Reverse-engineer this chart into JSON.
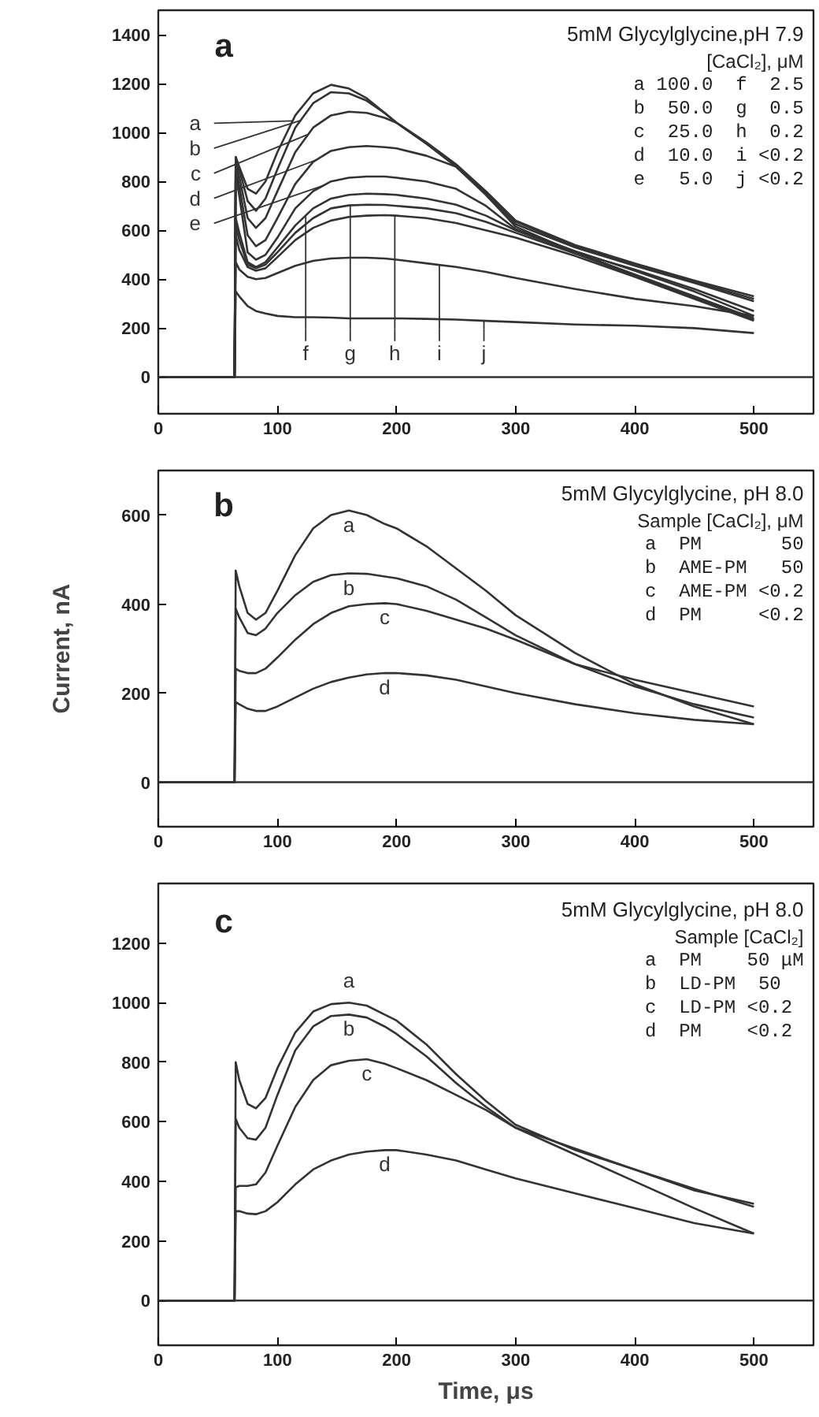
{
  "chart_data": [
    {
      "type": "line",
      "legend": "bottom left",
      "title": "5mM Glycylglycine,pH 7.9",
      "annotations": [
        "a",
        "[CaCl₂], μM",
        "a 100.0  f  2.5",
        "b  50.0  g  0.5",
        "c  25.0  h  0.2",
        "d  10.0  i <0.2",
        "e   5.0  j <0.2"
      ],
      "x": [
        0,
        64,
        65,
        68,
        75,
        82,
        90,
        100,
        115,
        130,
        145,
        160,
        175,
        190,
        200,
        225,
        250,
        275,
        300,
        350,
        400,
        450,
        500
      ],
      "xlim": [
        0,
        550
      ],
      "ylim": [
        -150,
        1500
      ],
      "xticks": [
        0,
        100,
        200,
        300,
        400,
        500
      ],
      "yticks": [
        0,
        200,
        400,
        600,
        800,
        1000,
        1200,
        1400
      ],
      "ref_lines": [
        {
          "axis": "y",
          "value": 0,
          "color": "#333333"
        }
      ],
      "series": [
        {
          "name": "a",
          "color": "#333333",
          "values": [
            0,
            0,
            900,
            860,
            770,
            750,
            800,
            920,
            1070,
            1160,
            1195,
            1180,
            1140,
            1080,
            1040,
            960,
            870,
            760,
            640,
            540,
            465,
            395,
            330
          ]
        },
        {
          "name": "b",
          "color": "#333333",
          "values": [
            0,
            0,
            900,
            850,
            720,
            680,
            730,
            850,
            1020,
            1120,
            1165,
            1160,
            1130,
            1080,
            1040,
            955,
            865,
            755,
            635,
            535,
            460,
            390,
            320
          ]
        },
        {
          "name": "c",
          "color": "#333333",
          "values": [
            0,
            0,
            880,
            820,
            650,
            610,
            650,
            760,
            920,
            1020,
            1070,
            1085,
            1080,
            1060,
            1040,
            955,
            860,
            750,
            625,
            530,
            455,
            385,
            310
          ]
        },
        {
          "name": "d",
          "color": "#333333",
          "values": [
            0,
            0,
            860,
            780,
            580,
            535,
            560,
            650,
            790,
            880,
            925,
            940,
            945,
            940,
            935,
            905,
            860,
            745,
            615,
            510,
            440,
            360,
            270
          ]
        },
        {
          "name": "e",
          "color": "#333333",
          "values": [
            0,
            0,
            840,
            740,
            510,
            480,
            500,
            570,
            690,
            760,
            800,
            815,
            820,
            820,
            815,
            800,
            770,
            700,
            605,
            515,
            435,
            350,
            250
          ]
        },
        {
          "name": "f",
          "color": "#333333",
          "values": [
            0,
            0,
            650,
            590,
            470,
            450,
            470,
            530,
            620,
            690,
            730,
            745,
            750,
            748,
            745,
            730,
            705,
            660,
            600,
            510,
            420,
            330,
            240
          ]
        },
        {
          "name": "g",
          "color": "#333333",
          "values": [
            0,
            0,
            620,
            560,
            460,
            445,
            460,
            510,
            590,
            650,
            690,
            702,
            705,
            704,
            700,
            690,
            670,
            635,
            590,
            505,
            415,
            325,
            235
          ]
        },
        {
          "name": "h",
          "color": "#333333",
          "values": [
            0,
            0,
            580,
            520,
            450,
            435,
            445,
            490,
            560,
            610,
            640,
            655,
            660,
            662,
            660,
            650,
            630,
            600,
            570,
            495,
            410,
            320,
            230
          ]
        },
        {
          "name": "i",
          "color": "#333333",
          "values": [
            0,
            0,
            470,
            440,
            410,
            400,
            405,
            425,
            455,
            475,
            485,
            488,
            488,
            485,
            480,
            465,
            450,
            430,
            405,
            360,
            320,
            290,
            250
          ]
        },
        {
          "name": "j",
          "color": "#333333",
          "values": [
            0,
            0,
            350,
            330,
            290,
            270,
            260,
            250,
            245,
            245,
            243,
            240,
            240,
            240,
            240,
            238,
            235,
            230,
            225,
            215,
            210,
            200,
            180
          ]
        }
      ]
    },
    {
      "type": "line",
      "title": "5mM Glycylglycine, pH 8.0",
      "ylabel": "Current, nA",
      "annotations": [
        "b",
        "Sample [CaCl₂], μM",
        "a  PM       50",
        "b  AME-PM   50",
        "c  AME-PM <0.2",
        "d  PM     <0.2"
      ],
      "x": [
        0,
        64,
        65,
        68,
        75,
        82,
        90,
        100,
        115,
        130,
        145,
        160,
        175,
        190,
        200,
        225,
        250,
        275,
        300,
        350,
        400,
        450,
        500
      ],
      "xlim": [
        0,
        550
      ],
      "ylim": [
        -100,
        700
      ],
      "xticks": [
        0,
        100,
        200,
        300,
        400,
        500
      ],
      "yticks": [
        0,
        200,
        400,
        600
      ],
      "ref_lines": [
        {
          "axis": "y",
          "value": 0,
          "color": "#333333"
        }
      ],
      "series": [
        {
          "name": "a",
          "color": "#333333",
          "values": [
            0,
            0,
            475,
            440,
            380,
            365,
            380,
            430,
            510,
            570,
            600,
            610,
            600,
            580,
            570,
            530,
            480,
            430,
            375,
            290,
            220,
            170,
            130
          ]
        },
        {
          "name": "b",
          "color": "#333333",
          "values": [
            0,
            0,
            390,
            370,
            335,
            330,
            345,
            380,
            420,
            450,
            465,
            469,
            468,
            462,
            458,
            440,
            410,
            370,
            330,
            265,
            215,
            175,
            145
          ]
        },
        {
          "name": "c",
          "color": "#333333",
          "values": [
            0,
            0,
            255,
            250,
            245,
            245,
            255,
            280,
            320,
            355,
            380,
            395,
            400,
            402,
            400,
            385,
            365,
            345,
            320,
            265,
            230,
            200,
            170
          ]
        },
        {
          "name": "d",
          "color": "#333333",
          "values": [
            0,
            0,
            180,
            175,
            165,
            160,
            160,
            170,
            190,
            210,
            225,
            235,
            242,
            245,
            245,
            240,
            230,
            215,
            200,
            175,
            155,
            140,
            130
          ]
        }
      ]
    },
    {
      "type": "line",
      "title": "5mM Glycylglycine, pH 8.0",
      "xlabel": "Time, μs",
      "annotations": [
        "c",
        "Sample [CaCl₂]",
        "a  PM    50 μM",
        "b  LD-PM  50",
        "c  LD-PM <0.2",
        "d  PM    <0.2"
      ],
      "x": [
        0,
        64,
        65,
        68,
        75,
        82,
        90,
        100,
        115,
        130,
        145,
        160,
        175,
        190,
        200,
        225,
        250,
        275,
        300,
        350,
        400,
        450,
        500
      ],
      "xlim": [
        0,
        550
      ],
      "ylim": [
        -150,
        1400
      ],
      "xticks": [
        0,
        100,
        200,
        300,
        400,
        500
      ],
      "yticks": [
        0,
        200,
        400,
        600,
        800,
        1000,
        1200
      ],
      "ref_lines": [
        {
          "axis": "y",
          "value": 0,
          "color": "#333333"
        }
      ],
      "series": [
        {
          "name": "a",
          "color": "#333333",
          "values": [
            0,
            0,
            800,
            740,
            660,
            645,
            680,
            780,
            900,
            970,
            995,
            1000,
            990,
            960,
            940,
            860,
            760,
            670,
            590,
            505,
            440,
            370,
            325
          ]
        },
        {
          "name": "b",
          "color": "#333333",
          "values": [
            0,
            0,
            610,
            580,
            545,
            540,
            580,
            690,
            840,
            920,
            955,
            960,
            950,
            920,
            895,
            820,
            730,
            650,
            580,
            510,
            440,
            375,
            315
          ]
        },
        {
          "name": "c",
          "color": "#333333",
          "values": [
            0,
            0,
            380,
            385,
            385,
            390,
            430,
            520,
            650,
            740,
            790,
            805,
            810,
            795,
            780,
            740,
            690,
            640,
            580,
            490,
            400,
            310,
            225
          ]
        },
        {
          "name": "d",
          "color": "#333333",
          "values": [
            0,
            0,
            300,
            300,
            292,
            290,
            300,
            330,
            390,
            440,
            470,
            490,
            500,
            505,
            505,
            490,
            470,
            440,
            410,
            360,
            310,
            260,
            225
          ]
        }
      ]
    }
  ]
}
